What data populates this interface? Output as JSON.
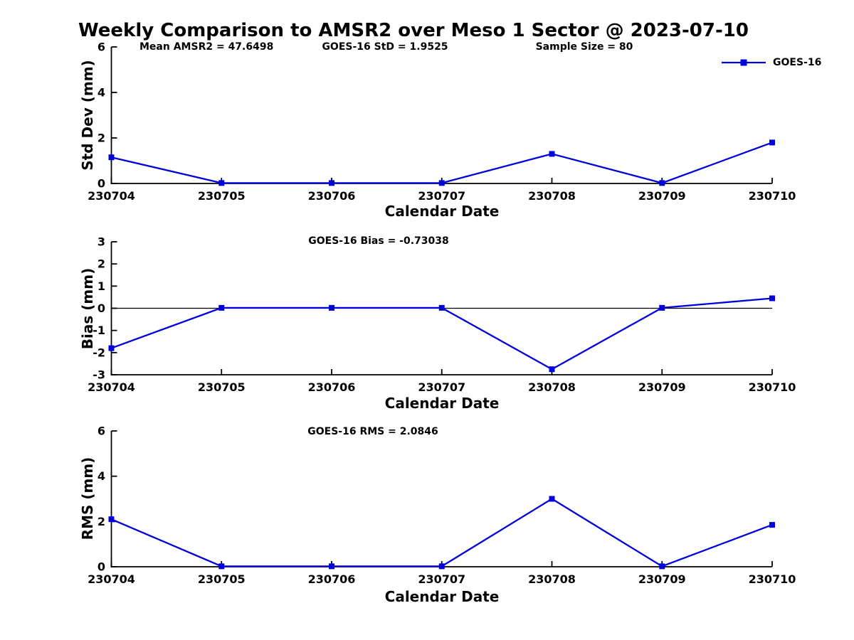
{
  "figure": {
    "title": "Weekly Comparison to AMSR2 over Meso 1 Sector @ 2023-07-10",
    "legend": {
      "series": "GOES-16",
      "position": "top-right-outside-axes"
    }
  },
  "colors": {
    "line": "#0000DD",
    "axis": "#000000",
    "text": "#000000",
    "background": "#FFFFFF"
  },
  "chart_data": [
    {
      "id": "std-dev",
      "type": "line",
      "annotations": [
        "Mean AMSR2 = 47.6498",
        "GOES-16 StD = 1.9525",
        "Sample Size = 80"
      ],
      "categories": [
        "230704",
        "230705",
        "230706",
        "230707",
        "230708",
        "230709",
        "230710"
      ],
      "series": [
        {
          "name": "GOES-16",
          "values": [
            1.15,
            0.02,
            0.02,
            0.02,
            1.3,
            0.02,
            1.8
          ]
        }
      ],
      "xlabel": "Calendar Date",
      "ylabel": "Std Dev (mm)",
      "ylim": [
        0,
        6
      ],
      "yticks": [
        0,
        2,
        4,
        6
      ],
      "grid": false,
      "marker": "square"
    },
    {
      "id": "bias",
      "type": "line",
      "title": "GOES-16 Bias  = -0.73038",
      "categories": [
        "230704",
        "230705",
        "230706",
        "230707",
        "230708",
        "230709",
        "230710"
      ],
      "series": [
        {
          "name": "GOES-16",
          "values": [
            -1.8,
            0.02,
            0.02,
            0.02,
            -2.75,
            0.02,
            0.45
          ]
        }
      ],
      "xlabel": "Calendar Date",
      "ylabel": "Bias (mm)",
      "ylim": [
        -3,
        3
      ],
      "yticks": [
        -3,
        -2,
        -1,
        0,
        1,
        2,
        3
      ],
      "zero_line": true,
      "grid": false,
      "marker": "square"
    },
    {
      "id": "rms",
      "type": "line",
      "title": "GOES-16 RMS = 2.0846",
      "categories": [
        "230704",
        "230705",
        "230706",
        "230707",
        "230708",
        "230709",
        "230710"
      ],
      "series": [
        {
          "name": "GOES-16",
          "values": [
            2.1,
            0.02,
            0.02,
            0.02,
            3.0,
            0.02,
            1.85
          ]
        }
      ],
      "xlabel": "Calendar Date",
      "ylabel": "RMS (mm)",
      "ylim": [
        0,
        6
      ],
      "yticks": [
        0,
        2,
        4,
        6
      ],
      "grid": false,
      "marker": "square"
    }
  ]
}
